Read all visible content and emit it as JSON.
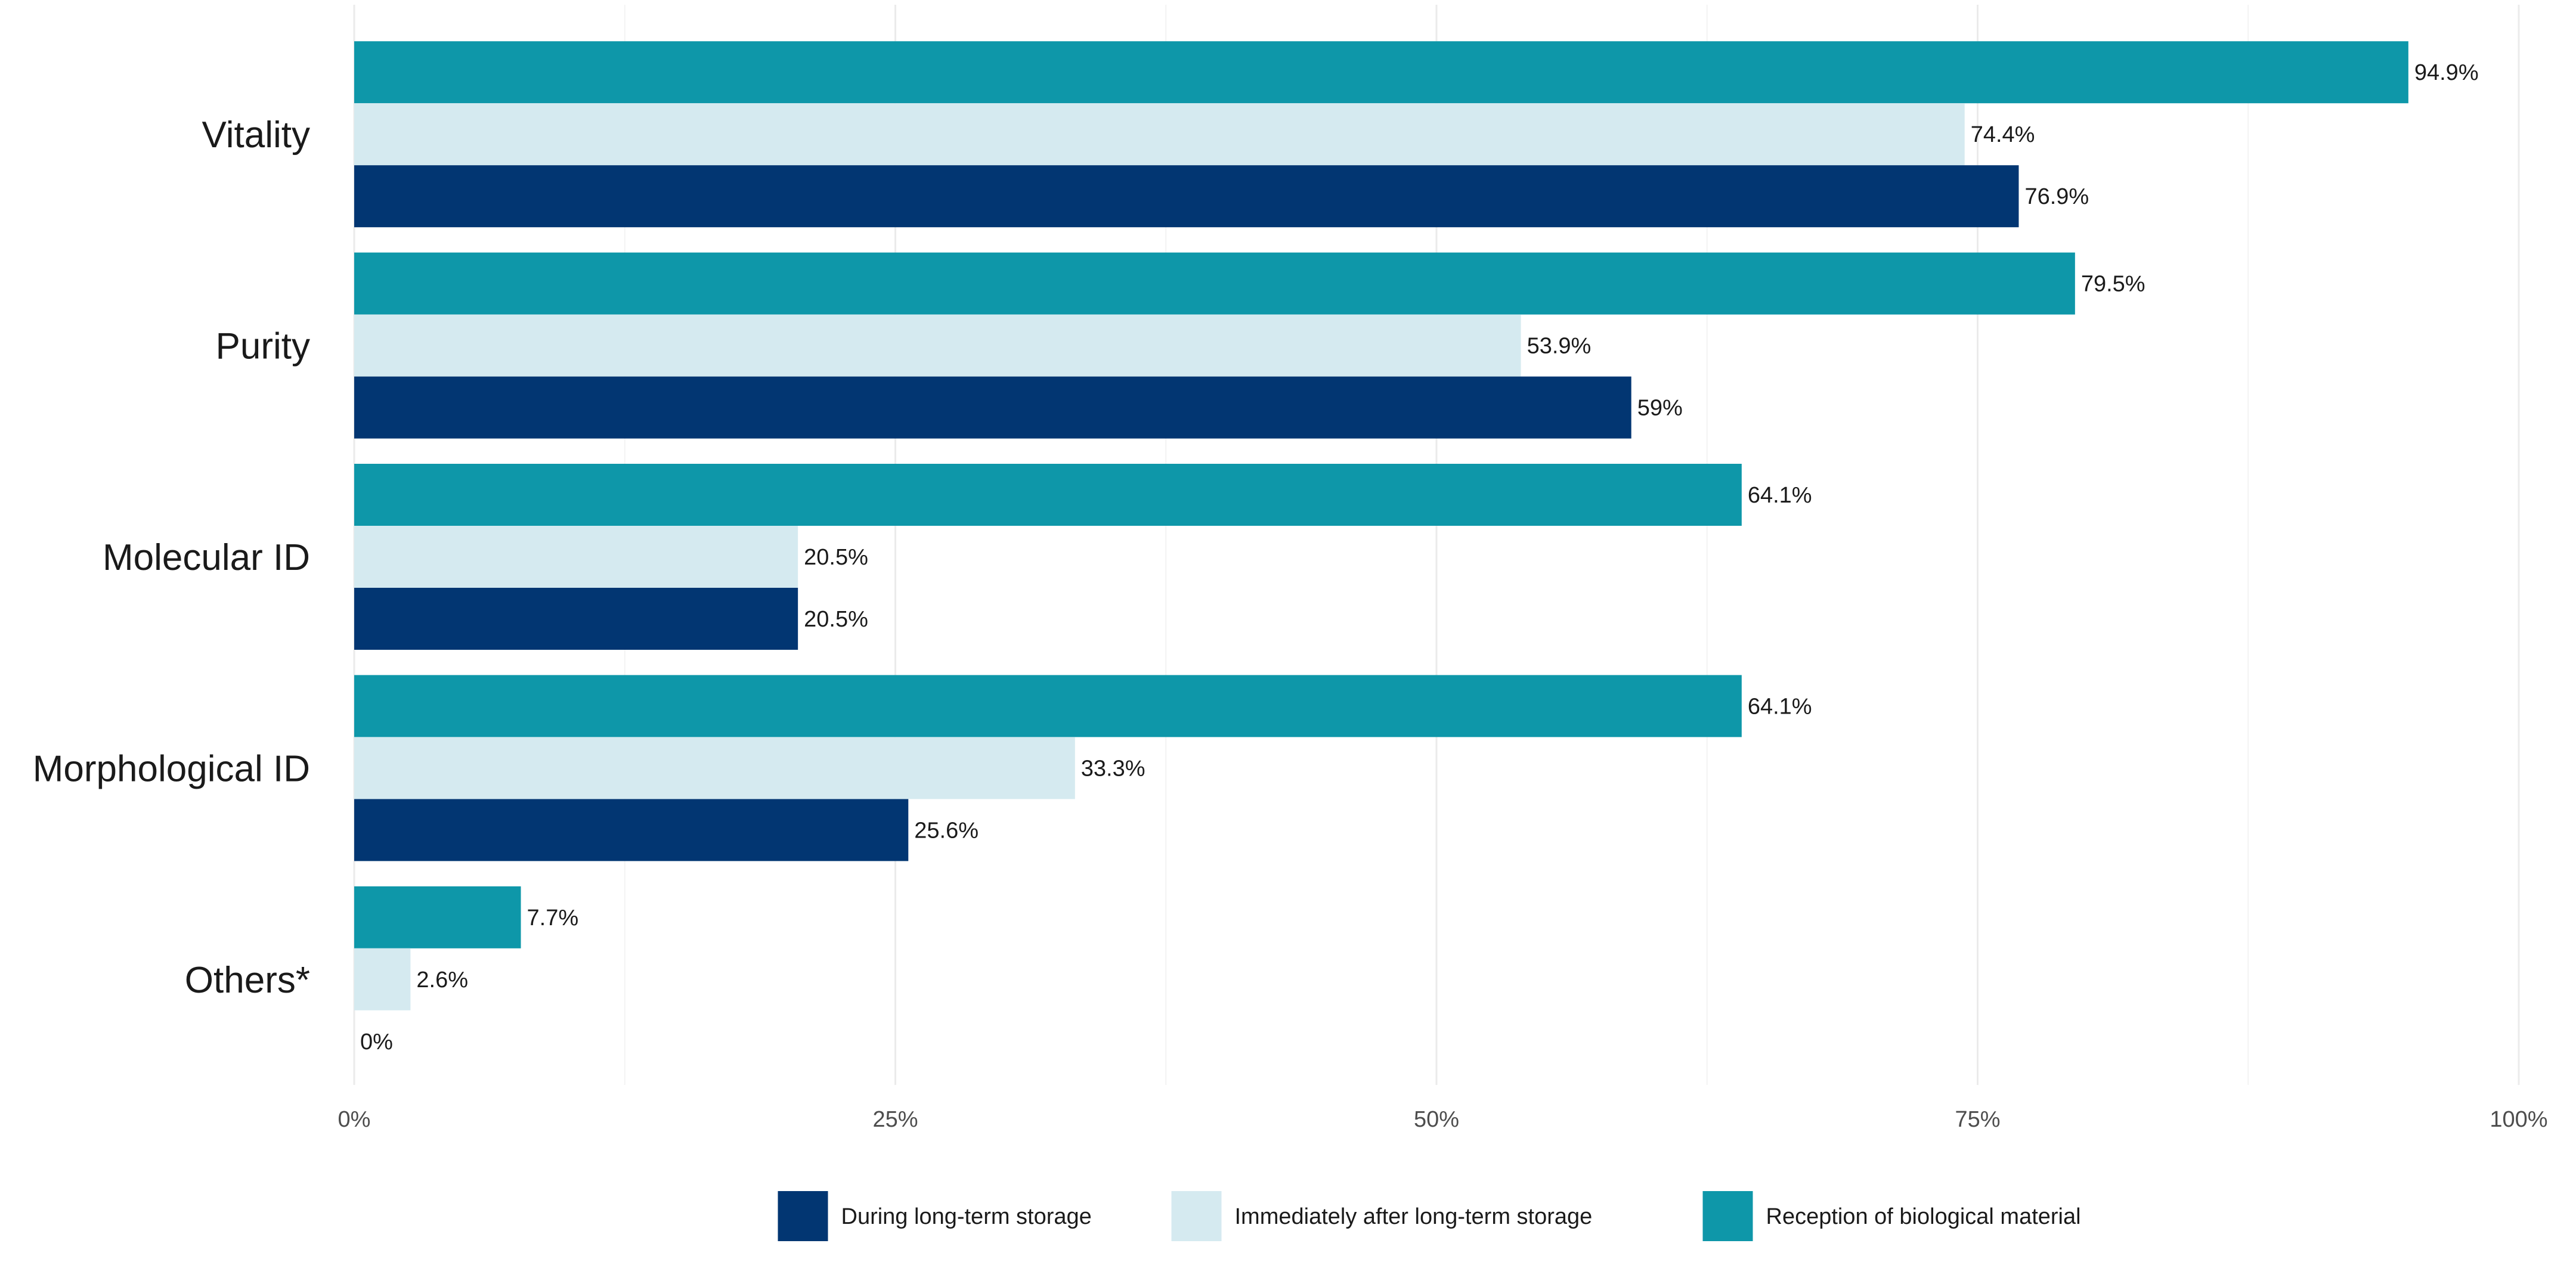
{
  "chart_data": {
    "type": "bar",
    "orientation": "horizontal",
    "title": "",
    "xlabel": "",
    "ylabel": "",
    "xlim": [
      0,
      100
    ],
    "x_ticks": [
      0,
      25,
      50,
      75,
      100
    ],
    "x_tick_labels": [
      "0%",
      "25%",
      "50%",
      "75%",
      "100%"
    ],
    "grid": true,
    "legend_position": "bottom",
    "categories": [
      "Vitality",
      "Purity",
      "Molecular ID",
      "Morphological ID",
      "Others*"
    ],
    "series": [
      {
        "name": "Reception of biological material",
        "color": "#0E97A9",
        "values": [
          94.9,
          79.5,
          64.1,
          64.1,
          7.7
        ],
        "labels": [
          "94.9%",
          "79.5%",
          "64.1%",
          "64.1%",
          "7.7%"
        ]
      },
      {
        "name": "Immediately after long-term storage",
        "color": "#D5EAF0",
        "values": [
          74.4,
          53.9,
          20.5,
          33.3,
          2.6
        ],
        "labels": [
          "74.4%",
          "53.9%",
          "20.5%",
          "33.3%",
          "2.6%"
        ]
      },
      {
        "name": "During long-term storage",
        "color": "#023672",
        "values": [
          76.9,
          59,
          20.5,
          25.6,
          0
        ],
        "labels": [
          "76.9%",
          "59%",
          "20.5%",
          "25.6%",
          "0%"
        ]
      }
    ],
    "legend_order": [
      "During long-term storage",
      "Immediately after long-term storage",
      "Reception of biological material"
    ]
  }
}
